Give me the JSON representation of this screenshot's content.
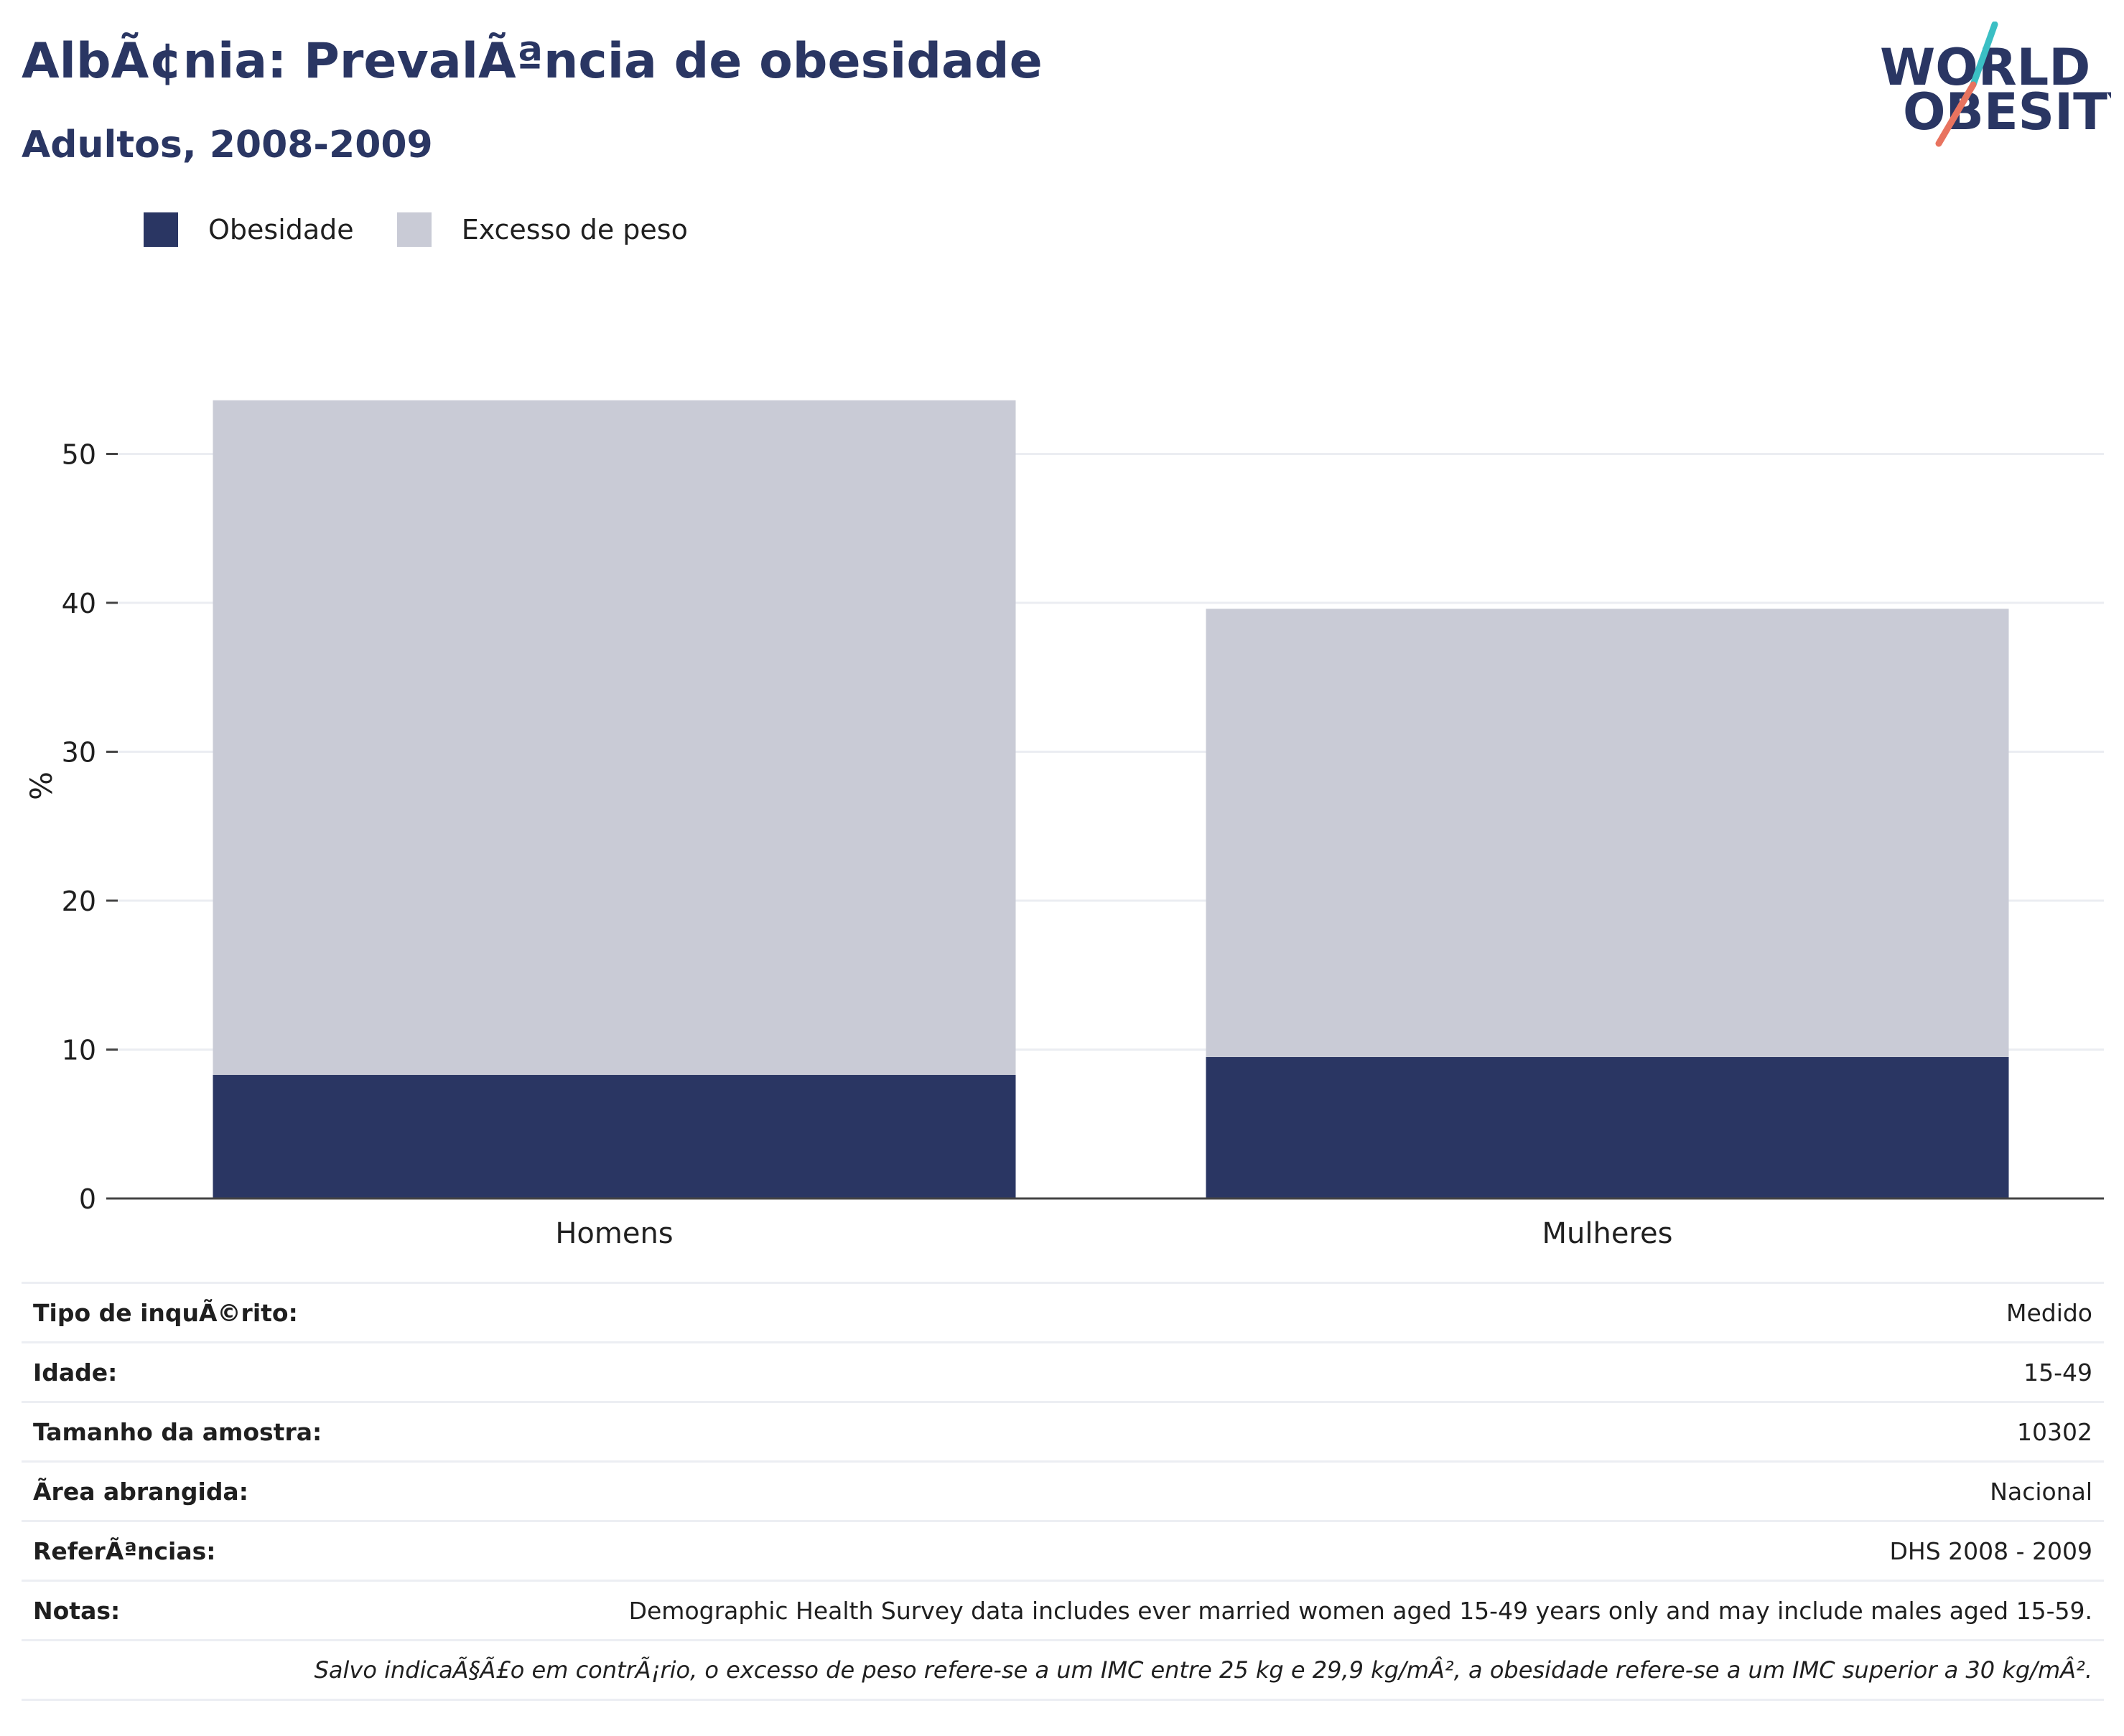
{
  "header": {
    "title": "AlbÃ¢nia: PrevalÃªncia de obesidade",
    "subtitle": "Adultos, 2008-2009"
  },
  "logo": {
    "line1": "WORLD",
    "line2": "OBESITY",
    "colors": {
      "text": "#2a3663",
      "accent_teal": "#3bbfc4",
      "accent_coral": "#e8735f"
    }
  },
  "legend": [
    {
      "label": "Obesidade",
      "color": "#2a3663"
    },
    {
      "label": "Excesso de peso",
      "color": "#c9cbd6"
    }
  ],
  "chart_data": {
    "type": "bar",
    "stacked": true,
    "categories": [
      "Homens",
      "Mulheres"
    ],
    "series": [
      {
        "name": "Obesidade",
        "color": "#2a3663",
        "values": [
          8.3,
          9.5
        ]
      },
      {
        "name": "Excesso de peso",
        "color": "#c9cbd6",
        "values": [
          45.3,
          30.1
        ]
      }
    ],
    "ylabel": "%",
    "ylim": [
      0,
      55
    ],
    "yticks": [
      0,
      10,
      20,
      30,
      40,
      50
    ],
    "grid": true,
    "legend_position": "top-left"
  },
  "info": [
    {
      "label": "Tipo de inquÃ©rito:",
      "value": "Medido"
    },
    {
      "label": "Idade:",
      "value": "15-49"
    },
    {
      "label": "Tamanho da amostra:",
      "value": "10302"
    },
    {
      "label": "Ãrea abrangida:",
      "value": "Nacional"
    },
    {
      "label": "ReferÃªncias:",
      "value": "DHS 2008 - 2009"
    },
    {
      "label": "Notas:",
      "value": "Demographic Health Survey data includes ever married women aged 15-49 years only and may include males aged 15-59."
    }
  ],
  "footnote": "Salvo indicaÃ§Ã£o em contrÃ¡rio, o excesso de peso refere-se a um IMC entre 25 kg e 29,9 kg/mÂ², a obesidade refere-se a um IMC superior a 30 kg/mÂ²."
}
